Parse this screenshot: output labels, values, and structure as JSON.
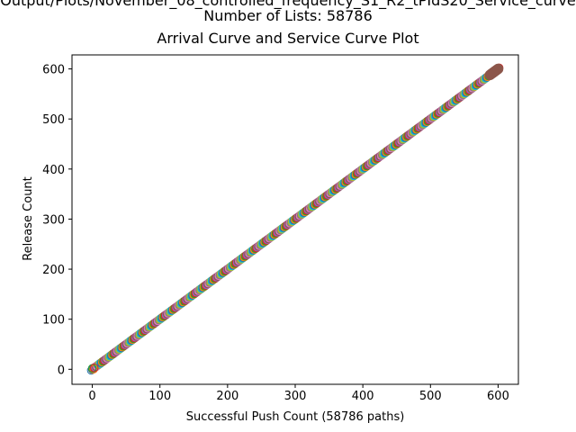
{
  "figure": {
    "title_lines": [
      "Output/Plots/November_08_controlled_frequency_S1_R2_tPIdS20_Service_curve",
      "Number of Lists: 58786",
      "Arrival Curve and Service Curve Plot"
    ]
  },
  "chart_data": {
    "type": "scatter",
    "title": "Arrival Curve and Service Curve Plot",
    "xlabel": "Successful Push Count (58786 paths)",
    "ylabel": "Release Count",
    "xlim": [
      -30,
      630
    ],
    "ylim": [
      -30,
      628
    ],
    "xticks": [
      0,
      100,
      200,
      300,
      400,
      500,
      600
    ],
    "yticks": [
      0,
      100,
      200,
      300,
      400,
      500,
      600
    ],
    "grid": false,
    "legend": "none",
    "marker": "hollow-circle",
    "series_count": 58786,
    "series": [
      {
        "x_start": 0,
        "x_end": 600,
        "y_start": 0,
        "y_end": 600,
        "step": 10,
        "colors": [
          "#1f77b4",
          "#ff7f0e",
          "#2ca02c",
          "#d62728",
          "#9467bd",
          "#8c564b",
          "#e377c2",
          "#7f7f7f",
          "#bcbd22",
          "#17becf"
        ],
        "end_color": "#8c564b"
      }
    ]
  }
}
